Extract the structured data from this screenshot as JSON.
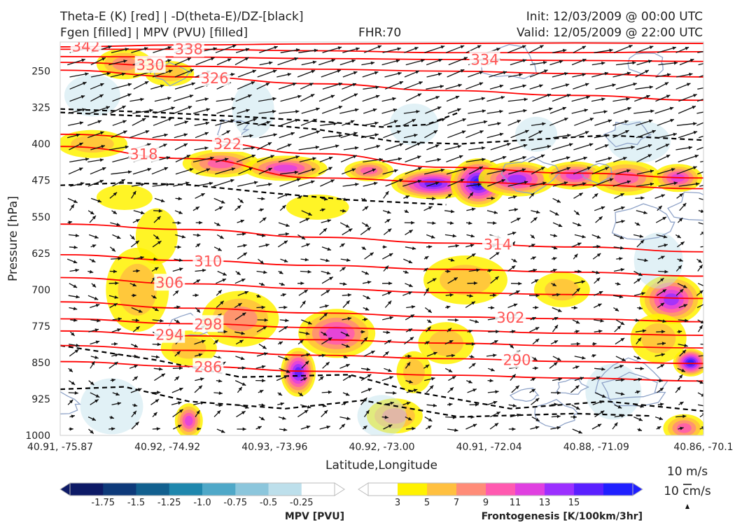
{
  "titles": {
    "left_line1": "Theta-E (K) [red] | -D(theta-E)/DZ-[black]",
    "left_line2": "Fgen [filled] | MPV (PVU) [filled]",
    "center": "FHR:70",
    "right_line1": "Init: 12/03/2009 @ 00:00 UTC",
    "right_line2": "Valid: 12/05/2009 @ 22:00 UTC"
  },
  "colors": {
    "theta_e": "#ff0000",
    "theta_e_label": "#ff5555",
    "stability": "#000000",
    "mpv_contour": "#8fa3c8",
    "mpv_fill": [
      "#0d1a66",
      "#0e3a7a",
      "#12608f",
      "#1f87ad",
      "#4fa8c8",
      "#8cc6dc",
      "#bddfeb",
      "#ffffff"
    ],
    "fgen_fill": [
      "#ffffff",
      "#fff200",
      "#ffc040",
      "#ff8c78",
      "#ff5ab0",
      "#e040e0",
      "#9b30ff",
      "#5a20ff",
      "#2020ff"
    ]
  },
  "chart_data": {
    "type": "cross-section",
    "xlabel": "Latitude,Longitude",
    "ylabel": "Pressure [hPa]",
    "x_ticks": [
      "40.91, -75.87",
      "40.92, -74.92",
      "40.93, -73.96",
      "40.92, -73.00",
      "40.91, -72.04",
      "40.88, -71.09",
      "40.86, -70.1"
    ],
    "y_ticks": [
      250,
      325,
      400,
      475,
      550,
      625,
      700,
      775,
      850,
      925,
      1000
    ],
    "ylim": [
      1000,
      190
    ],
    "theta_e_contours": [
      {
        "label": "342",
        "p": [
          200,
          196,
          194,
          193,
          192,
          193
        ]
      },
      {
        "label": "338",
        "p": [
          205,
          205,
          208,
          212,
          212,
          210
        ]
      },
      {
        "label": "334",
        "p": [
          220,
          221,
          224,
          226,
          228,
          230
        ]
      },
      {
        "label": "330",
        "p": [
          232,
          240,
          246,
          250,
          255,
          262
        ]
      },
      {
        "label": "326",
        "p": [
          248,
          262,
          276,
          290,
          300,
          310
        ]
      },
      {
        "label": "322",
        "p": [
          380,
          392,
          420,
          448,
          460,
          470
        ]
      },
      {
        "label": "318",
        "p": [
          405,
          430,
          470,
          478,
          484,
          492
        ]
      },
      {
        "label": "314",
        "p": [
          565,
          576,
          592,
          604,
          612,
          622
        ]
      },
      {
        "label": "310",
        "p": [
          628,
          640,
          650,
          658,
          664,
          672
        ]
      },
      {
        "label": "306",
        "p": [
          675,
          688,
          698,
          706,
          710,
          718
        ]
      },
      {
        "label": "302",
        "p": [
          725,
          738,
          748,
          756,
          760,
          766
        ]
      },
      {
        "label": "298",
        "p": [
          760,
          770,
          778,
          784,
          790,
          794
        ]
      },
      {
        "label": "294",
        "p": [
          785,
          795,
          803,
          810,
          816,
          820
        ]
      },
      {
        "label": "290",
        "p": [
          815,
          825,
          835,
          842,
          848,
          852
        ]
      },
      {
        "label": "286",
        "p": [
          848,
          858,
          868,
          876,
          882,
          888
        ]
      }
    ],
    "mpv_colorbar": {
      "title": "MPV [PVU]",
      "levels": [
        "-1.75",
        "-1.5",
        "-1.25",
        "-1.0",
        "-0.75",
        "-0.5",
        "-0.25"
      ]
    },
    "fgen_colorbar": {
      "title": "Frontogenesis [K/100km/3hr]",
      "levels": [
        "3",
        "5",
        "7",
        "9",
        "11",
        "13",
        "15"
      ]
    },
    "vector_reference": {
      "horizontal": "10 m/s",
      "vertical": "10 cm/s"
    }
  }
}
